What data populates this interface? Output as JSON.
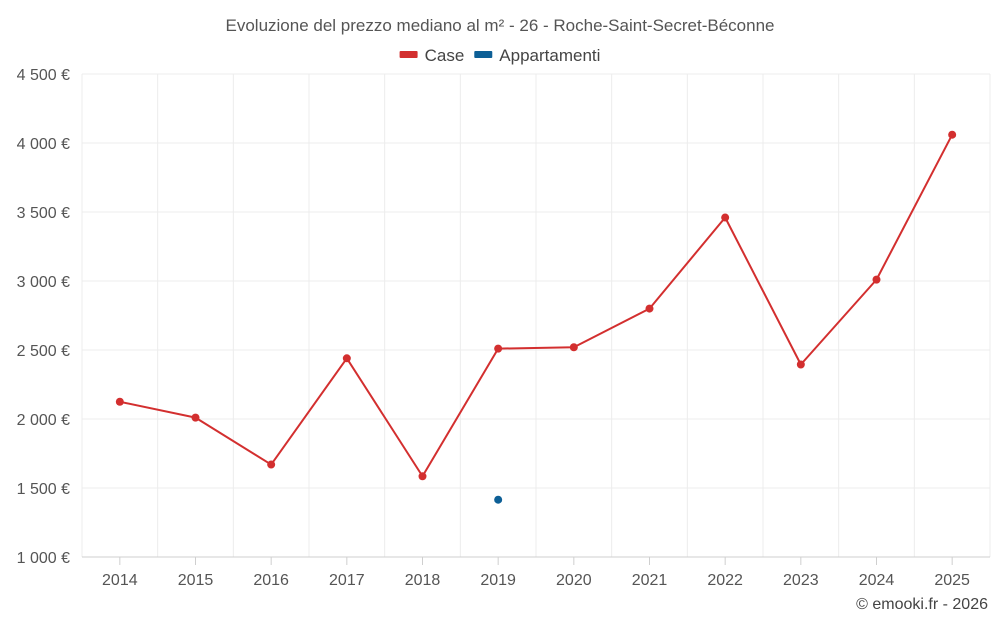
{
  "chart_data": {
    "type": "line",
    "title": "Evoluzione del prezzo mediano al m² - 26 - Roche-Saint-Secret-Béconne",
    "x": [
      "2014",
      "2015",
      "2016",
      "2017",
      "2018",
      "2019",
      "2020",
      "2021",
      "2022",
      "2023",
      "2024",
      "2025"
    ],
    "y_ticks": [
      "1 000 €",
      "1 500 €",
      "2 000 €",
      "2 500 €",
      "3 000 €",
      "3 500 €",
      "4 000 €",
      "4 500 €"
    ],
    "ylim": [
      1000,
      4500
    ],
    "grid": true,
    "legend_position": "top-center",
    "series": [
      {
        "name": "Case",
        "color": "#d32f2f",
        "values": [
          2125,
          2010,
          1670,
          2440,
          1585,
          2510,
          2520,
          2800,
          3460,
          2395,
          3010,
          4060
        ]
      },
      {
        "name": "Appartamenti",
        "color": "#0d5f96",
        "values": [
          null,
          null,
          null,
          null,
          null,
          1415,
          null,
          null,
          null,
          null,
          null,
          null
        ]
      }
    ]
  },
  "credit": "© emooki.fr - 2026"
}
